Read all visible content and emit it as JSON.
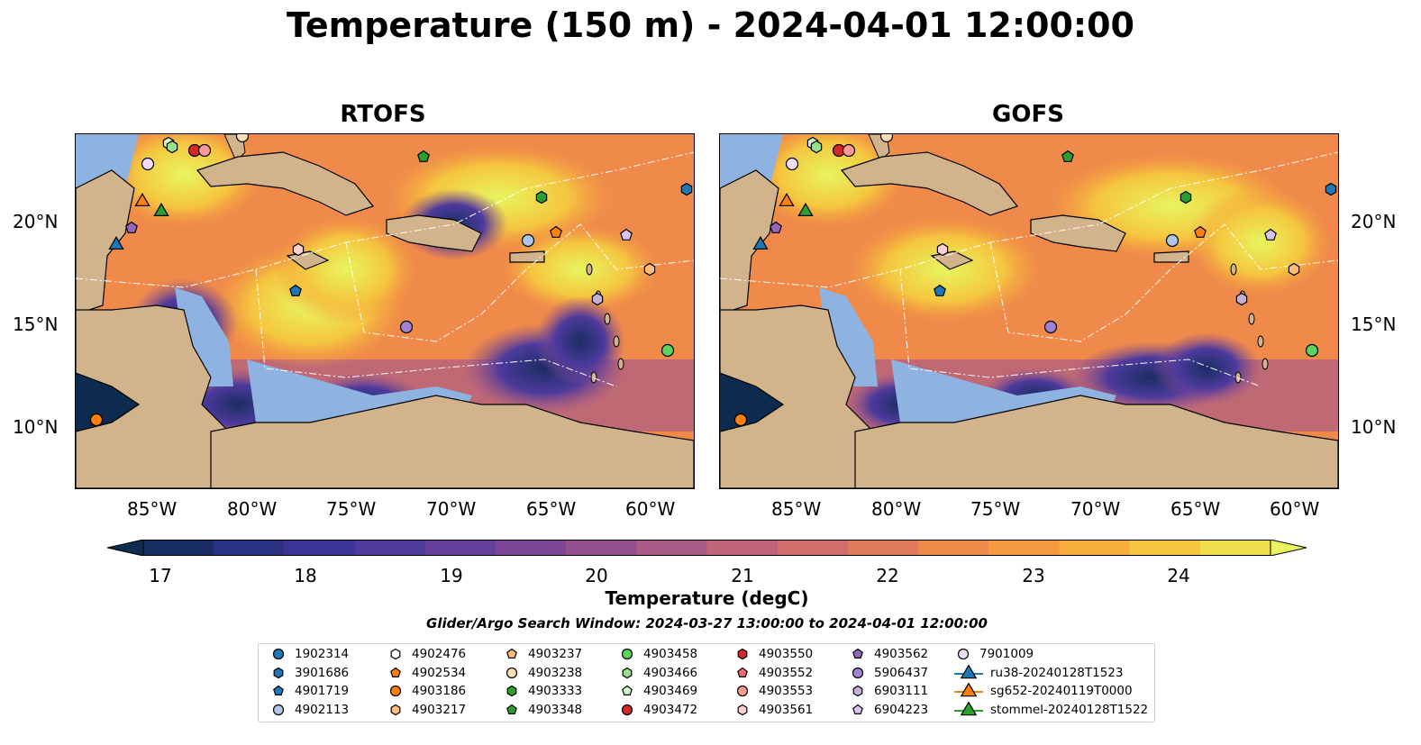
{
  "title": "Temperature (150 m) - 2024-04-01 12:00:00",
  "panels": [
    {
      "name": "RTOFS"
    },
    {
      "name": "GOFS"
    }
  ],
  "lat_ticks": [
    "20°N",
    "15°N",
    "10°N"
  ],
  "lon_ticks": [
    "85°W",
    "80°W",
    "75°W",
    "70°W",
    "65°W",
    "60°W"
  ],
  "colorbar": {
    "label": "Temperature (degC)",
    "ticks": [
      "17",
      "18",
      "19",
      "20",
      "21",
      "22",
      "23",
      "24"
    ],
    "min": 16.5,
    "max": 24.5,
    "colors": [
      "#0d2a4f",
      "#1a2d63",
      "#2c3183",
      "#3c3597",
      "#4d3a9c",
      "#643f9c",
      "#7c4596",
      "#92508f",
      "#a95b86",
      "#bf6479",
      "#d06e6c",
      "#e07a5c",
      "#ef8a4b",
      "#f59a3f",
      "#f7ad3c",
      "#f5c53f",
      "#eedd4e",
      "#e8f55f"
    ]
  },
  "search_window": "Glider/Argo Search Window: 2024-03-27 13:00:00 to 2024-04-01 12:00:00",
  "legend": [
    {
      "label": "1902314",
      "marker": "circle",
      "color": "#1f77b4"
    },
    {
      "label": "3901686",
      "marker": "hexagon",
      "color": "#1f77b4"
    },
    {
      "label": "4901719",
      "marker": "pentagon",
      "color": "#1f77b4"
    },
    {
      "label": "4902113",
      "marker": "circle",
      "color": "#aec7e8"
    },
    {
      "label": "4902476",
      "marker": "hexagon",
      "color": "#ffffff"
    },
    {
      "label": "4902534",
      "marker": "pentagon",
      "color": "#ff7f0e"
    },
    {
      "label": "4903186",
      "marker": "circle",
      "color": "#ff7f0e"
    },
    {
      "label": "4903217",
      "marker": "hexagon",
      "color": "#ffbb78"
    },
    {
      "label": "4903237",
      "marker": "pentagon",
      "color": "#ffbb78"
    },
    {
      "label": "4903238",
      "marker": "circle",
      "color": "#ffdcb8"
    },
    {
      "label": "4903333",
      "marker": "hexagon",
      "color": "#2ca02c"
    },
    {
      "label": "4903348",
      "marker": "pentagon",
      "color": "#2ca02c"
    },
    {
      "label": "4903458",
      "marker": "circle",
      "color": "#5fd35f"
    },
    {
      "label": "4903466",
      "marker": "hexagon",
      "color": "#98df8a"
    },
    {
      "label": "4903469",
      "marker": "pentagon",
      "color": "#d4f7c8"
    },
    {
      "label": "4903472",
      "marker": "circle",
      "color": "#d62728"
    },
    {
      "label": "4903550",
      "marker": "hexagon",
      "color": "#d62728"
    },
    {
      "label": "4903552",
      "marker": "pentagon",
      "color": "#f26b6b"
    },
    {
      "label": "4903553",
      "marker": "circle",
      "color": "#ff9896"
    },
    {
      "label": "4903561",
      "marker": "hexagon",
      "color": "#ffd0d0"
    },
    {
      "label": "4903562",
      "marker": "pentagon",
      "color": "#9467bd"
    },
    {
      "label": "5906437",
      "marker": "circle",
      "color": "#a57fd1"
    },
    {
      "label": "6903111",
      "marker": "hexagon",
      "color": "#c5b0d5"
    },
    {
      "label": "6904223",
      "marker": "pentagon",
      "color": "#d7c4f2"
    },
    {
      "label": "7901009",
      "marker": "circle",
      "color": "#f2dcf7"
    },
    {
      "label": "ru38-20240128T1523",
      "marker": "triangle-line",
      "color": "#1f77b4"
    },
    {
      "label": "sg652-20240119T0000",
      "marker": "triangle-line",
      "color": "#ff7f0e"
    },
    {
      "label": "stommel-20240128T1522",
      "marker": "triangle-line",
      "color": "#2ca02c"
    }
  ],
  "colors": {
    "land": "#d2b48c",
    "shelf": "#8fb3e0",
    "background": "#ffffff"
  }
}
